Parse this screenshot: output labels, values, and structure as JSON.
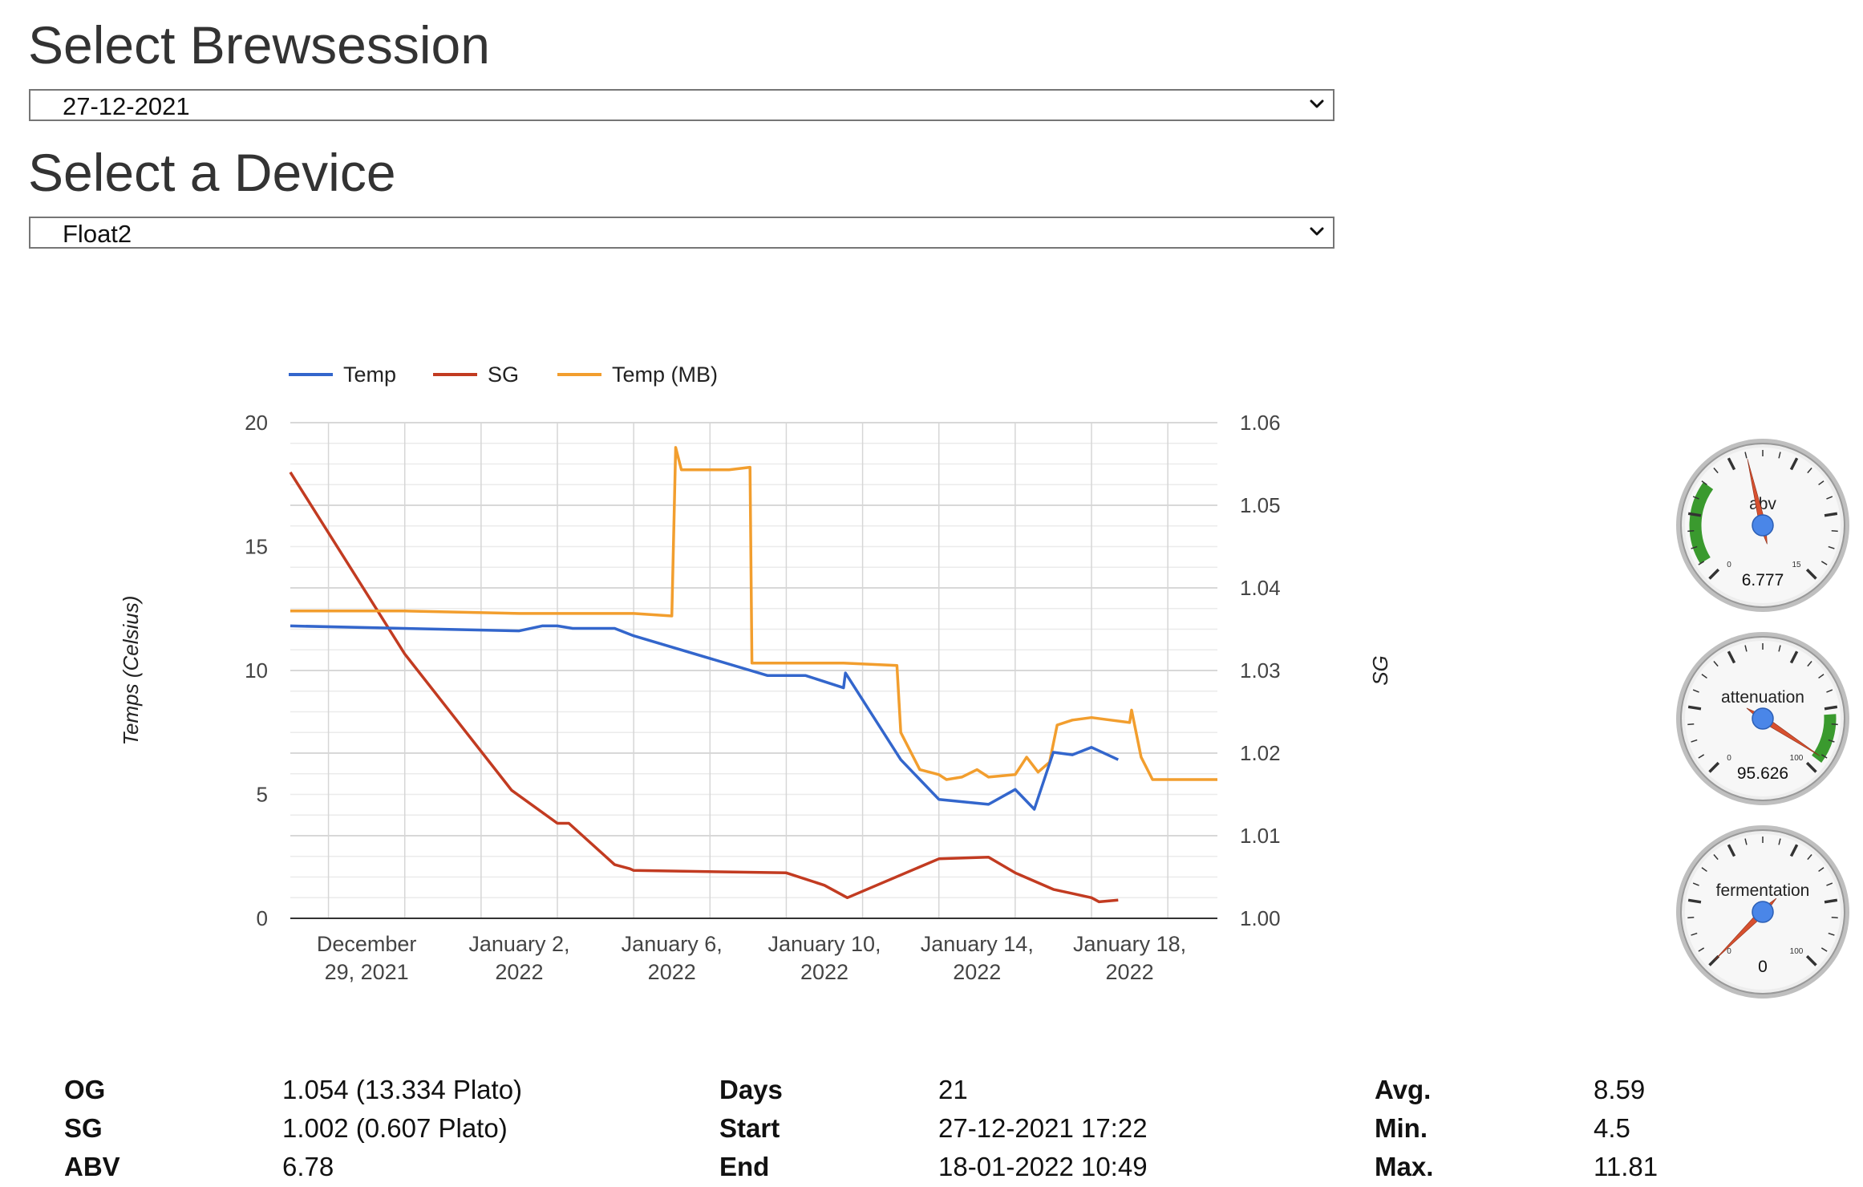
{
  "brewsession": {
    "heading": "Select Brewsession",
    "selected": "27-12-2021"
  },
  "device": {
    "heading": "Select a Device",
    "selected": "Float2"
  },
  "colors": {
    "temp": "#3366cc",
    "sg": "#c23b21",
    "temp_mb": "#f29e2e",
    "gauge_green": "#3a9a2e",
    "needle": "#d7502f"
  },
  "chart_data": {
    "type": "line",
    "legend": [
      "Temp",
      "SG",
      "Temp (MB)"
    ],
    "ylabel_left": "Temps (Celsius)",
    "ylabel_right": "SG",
    "ylim_left": [
      0,
      20
    ],
    "ylim_right": [
      1.0,
      1.06
    ],
    "yticks_left": [
      "0",
      "5",
      "10",
      "15",
      "20"
    ],
    "yticks_right": [
      "1.00",
      "1.01",
      "1.02",
      "1.03",
      "1.04",
      "1.05",
      "1.06"
    ],
    "xrange_days_from_dec27": [
      0,
      24.3
    ],
    "xticks": [
      {
        "day": 2.0,
        "line1": "December",
        "line2": "29, 2021"
      },
      {
        "day": 6.0,
        "line1": "January 2,",
        "line2": "2022"
      },
      {
        "day": 10.0,
        "line1": "January 6,",
        "line2": "2022"
      },
      {
        "day": 14.0,
        "line1": "January 10,",
        "line2": "2022"
      },
      {
        "day": 18.0,
        "line1": "January 14,",
        "line2": "2022"
      },
      {
        "day": 22.0,
        "line1": "January 18,",
        "line2": "2022"
      }
    ],
    "series": [
      {
        "name": "Temp",
        "axis": "left",
        "points": [
          [
            0,
            11.8
          ],
          [
            6.0,
            11.6
          ],
          [
            6.6,
            11.8
          ],
          [
            7.0,
            11.8
          ],
          [
            7.4,
            11.7
          ],
          [
            8.5,
            11.7
          ],
          [
            9.0,
            11.4
          ],
          [
            12.5,
            9.8
          ],
          [
            13.5,
            9.8
          ],
          [
            14.5,
            9.3
          ],
          [
            14.55,
            9.9
          ],
          [
            16.0,
            6.4
          ],
          [
            17.0,
            4.8
          ],
          [
            18.3,
            4.6
          ],
          [
            19.0,
            5.2
          ],
          [
            19.5,
            4.4
          ],
          [
            20.0,
            6.7
          ],
          [
            20.5,
            6.6
          ],
          [
            21.0,
            6.9
          ],
          [
            21.7,
            6.4
          ]
        ]
      },
      {
        "name": "SG",
        "axis": "right",
        "points": [
          [
            0,
            1.054
          ],
          [
            3.0,
            1.032
          ],
          [
            5.8,
            1.0155
          ],
          [
            7.0,
            1.0115
          ],
          [
            7.3,
            1.0115
          ],
          [
            8.5,
            1.0065
          ],
          [
            8.9,
            1.006
          ],
          [
            9.0,
            1.0058
          ],
          [
            13.0,
            1.0055
          ],
          [
            14.0,
            1.004
          ],
          [
            14.6,
            1.0025
          ],
          [
            17.0,
            1.0072
          ],
          [
            18.3,
            1.0074
          ],
          [
            19.0,
            1.0055
          ],
          [
            20.0,
            1.0035
          ],
          [
            20.5,
            1.003
          ],
          [
            21.0,
            1.0025
          ],
          [
            21.2,
            1.002
          ],
          [
            21.7,
            1.0022
          ]
        ]
      },
      {
        "name": "Temp (MB)",
        "axis": "left",
        "points": [
          [
            0,
            12.4
          ],
          [
            3.0,
            12.4
          ],
          [
            6.0,
            12.3
          ],
          [
            9.0,
            12.3
          ],
          [
            10.0,
            12.2
          ],
          [
            10.1,
            19.0
          ],
          [
            10.25,
            18.1
          ],
          [
            11.5,
            18.1
          ],
          [
            12.05,
            18.2
          ],
          [
            12.1,
            10.3
          ],
          [
            14.5,
            10.3
          ],
          [
            15.9,
            10.2
          ],
          [
            16.0,
            7.5
          ],
          [
            16.5,
            6.0
          ],
          [
            17.0,
            5.8
          ],
          [
            17.2,
            5.6
          ],
          [
            17.6,
            5.7
          ],
          [
            18.0,
            6.0
          ],
          [
            18.3,
            5.7
          ],
          [
            19.0,
            5.8
          ],
          [
            19.3,
            6.5
          ],
          [
            19.6,
            5.9
          ],
          [
            19.9,
            6.3
          ],
          [
            20.1,
            7.8
          ],
          [
            20.5,
            8.0
          ],
          [
            21.0,
            8.1
          ],
          [
            21.5,
            8.0
          ],
          [
            22.0,
            7.9
          ],
          [
            22.05,
            8.4
          ],
          [
            22.3,
            6.5
          ],
          [
            22.6,
            5.6
          ],
          [
            24.3,
            5.6
          ]
        ]
      }
    ]
  },
  "gauges": [
    {
      "label": "abv",
      "value": "6.777",
      "value_num": 6.777,
      "max": 15,
      "min_label": "0",
      "max_label": "15"
    },
    {
      "label": "attenuation",
      "value": "95.626",
      "value_num": 95.626,
      "max": 100,
      "min_label": "0",
      "max_label": "100"
    },
    {
      "label": "fermentation",
      "value": "0",
      "value_num": 0,
      "max": 100,
      "min_label": "0",
      "max_label": "100"
    }
  ],
  "stats": [
    {
      "label": "OG",
      "value": "1.054 (13.334 Plato)"
    },
    {
      "label": "SG",
      "value": "1.002 (0.607 Plato)"
    },
    {
      "label": "ABV",
      "value": "6.78"
    },
    {
      "label": "Days",
      "value": "21"
    },
    {
      "label": "Start",
      "value": "27-12-2021 17:22"
    },
    {
      "label": "End",
      "value": "18-01-2022 10:49"
    },
    {
      "label": "Avg.",
      "value": "8.59"
    },
    {
      "label": "Min.",
      "value": "4.5"
    },
    {
      "label": "Max.",
      "value": "11.81"
    }
  ]
}
